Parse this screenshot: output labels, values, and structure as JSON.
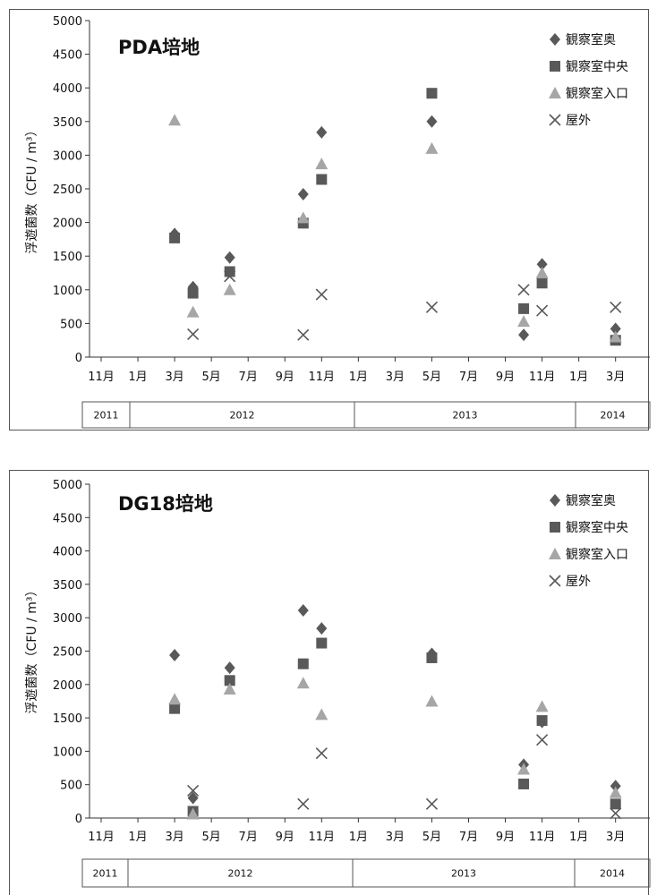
{
  "chart_data": [
    {
      "type": "scatter",
      "title": "PDA培地",
      "ylabel": "浮遊菌数（CFU / m³）",
      "xlabel": "",
      "ylim": [
        0,
        5000
      ],
      "yticks": [
        0,
        500,
        1000,
        1500,
        2000,
        2500,
        3000,
        3500,
        4000,
        4500,
        5000
      ],
      "xtick_labels": [
        "11月",
        "1月",
        "3月",
        "5月",
        "7月",
        "9月",
        "11月",
        "1月",
        "3月",
        "5月",
        "7月",
        "9月",
        "11月",
        "1月",
        "3月"
      ],
      "years": [
        "2011",
        "2012",
        "2013",
        "2014"
      ],
      "legend_position": "top-right",
      "grid": false,
      "series": [
        {
          "name": "観察室奥",
          "marker": "diamond",
          "color": "#595959",
          "points": [
            [
              "2012-03",
              1830
            ],
            [
              "2012-04",
              1040
            ],
            [
              "2012-06",
              1480
            ],
            [
              "2012-10",
              2420
            ],
            [
              "2012-11",
              3340
            ],
            [
              "2013-05",
              3500
            ],
            [
              "2013-10",
              330
            ],
            [
              "2013-11",
              1380
            ],
            [
              "2014-03",
              420
            ]
          ]
        },
        {
          "name": "観察室中央",
          "marker": "square",
          "color": "#595959",
          "points": [
            [
              "2012-03",
              1770
            ],
            [
              "2012-04",
              950
            ],
            [
              "2012-06",
              1270
            ],
            [
              "2012-10",
              1990
            ],
            [
              "2012-11",
              2640
            ],
            [
              "2013-05",
              3920
            ],
            [
              "2013-10",
              720
            ],
            [
              "2013-11",
              1100
            ],
            [
              "2014-03",
              250
            ]
          ]
        },
        {
          "name": "観察室入口",
          "marker": "triangle",
          "color": "#a6a6a6",
          "points": [
            [
              "2012-03",
              3520
            ],
            [
              "2012-04",
              670
            ],
            [
              "2012-06",
              1000
            ],
            [
              "2012-10",
              2070
            ],
            [
              "2012-11",
              2870
            ],
            [
              "2013-05",
              3100
            ],
            [
              "2013-10",
              530
            ],
            [
              "2013-11",
              1250
            ],
            [
              "2014-03",
              300
            ]
          ]
        },
        {
          "name": "屋外",
          "marker": "x",
          "color": "#595959",
          "points": [
            [
              "2012-04",
              340
            ],
            [
              "2012-06",
              1200
            ],
            [
              "2012-10",
              330
            ],
            [
              "2012-11",
              930
            ],
            [
              "2013-05",
              740
            ],
            [
              "2013-10",
              1000
            ],
            [
              "2013-11",
              690
            ],
            [
              "2014-03",
              740
            ]
          ]
        }
      ]
    },
    {
      "type": "scatter",
      "title": "DG18培地",
      "ylabel": "浮遊菌数（CFU / m³）",
      "xlabel": "",
      "ylim": [
        0,
        5000
      ],
      "yticks": [
        0,
        500,
        1000,
        1500,
        2000,
        2500,
        3000,
        3500,
        4000,
        4500,
        5000
      ],
      "xtick_labels": [
        "11月",
        "1月",
        "3月",
        "5月",
        "7月",
        "9月",
        "11月",
        "1月",
        "3月",
        "5月",
        "7月",
        "9月",
        "11月",
        "1月",
        "3月"
      ],
      "years": [
        "2011",
        "2012",
        "2013",
        "2014"
      ],
      "legend_position": "top-right",
      "grid": false,
      "series": [
        {
          "name": "観察室奥",
          "marker": "diamond",
          "color": "#595959",
          "points": [
            [
              "2012-03",
              2440
            ],
            [
              "2012-04",
              300
            ],
            [
              "2012-06",
              2250
            ],
            [
              "2012-10",
              3110
            ],
            [
              "2012-11",
              2840
            ],
            [
              "2013-05",
              2460
            ],
            [
              "2013-10",
              800
            ],
            [
              "2013-11",
              1440
            ],
            [
              "2014-03",
              480
            ]
          ]
        },
        {
          "name": "観察室中央",
          "marker": "square",
          "color": "#595959",
          "points": [
            [
              "2012-03",
              1640
            ],
            [
              "2012-04",
              100
            ],
            [
              "2012-06",
              2060
            ],
            [
              "2012-10",
              2310
            ],
            [
              "2012-11",
              2620
            ],
            [
              "2013-05",
              2400
            ],
            [
              "2013-10",
              510
            ],
            [
              "2013-11",
              1460
            ],
            [
              "2014-03",
              210
            ]
          ]
        },
        {
          "name": "観察室入口",
          "marker": "triangle",
          "color": "#a6a6a6",
          "points": [
            [
              "2012-03",
              1780
            ],
            [
              "2012-04",
              60
            ],
            [
              "2012-06",
              1930
            ],
            [
              "2012-10",
              2020
            ],
            [
              "2012-11",
              1550
            ],
            [
              "2013-05",
              1750
            ],
            [
              "2013-10",
              730
            ],
            [
              "2013-11",
              1670
            ],
            [
              "2014-03",
              380
            ]
          ]
        },
        {
          "name": "屋外",
          "marker": "x",
          "color": "#595959",
          "points": [
            [
              "2012-04",
              410
            ],
            [
              "2012-10",
              210
            ],
            [
              "2012-11",
              970
            ],
            [
              "2013-05",
              210
            ],
            [
              "2013-11",
              1170
            ],
            [
              "2014-03",
              70
            ]
          ]
        }
      ]
    }
  ]
}
